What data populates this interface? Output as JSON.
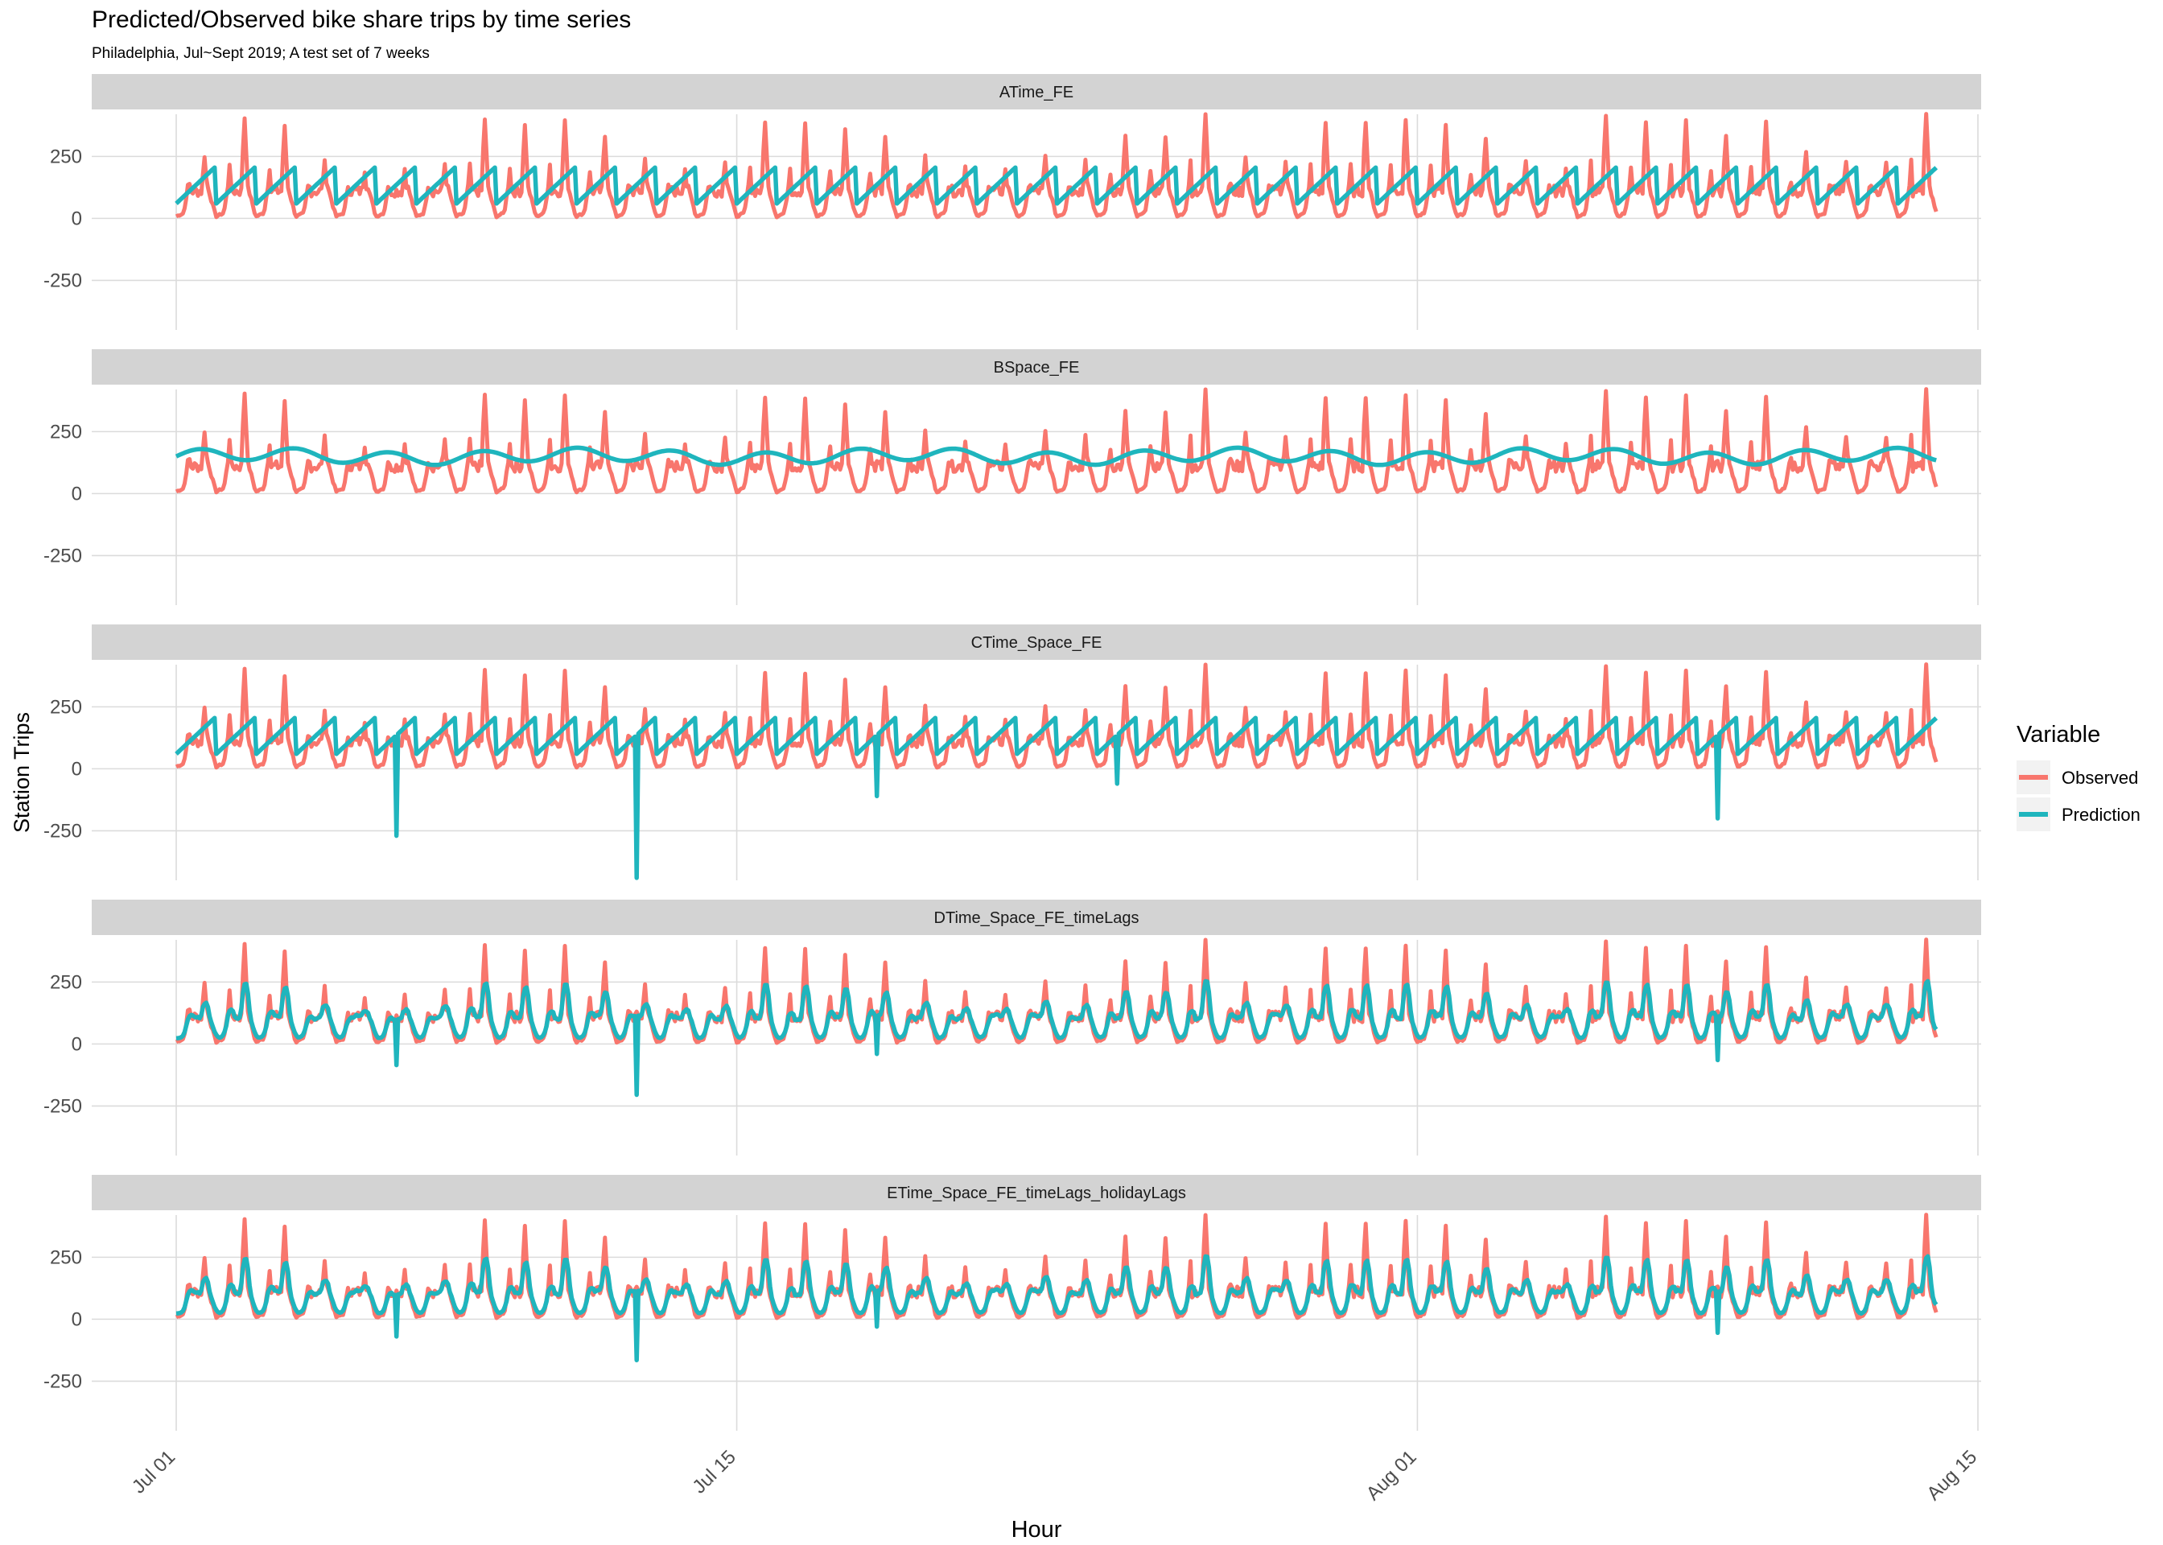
{
  "chart_data": {
    "type": "line",
    "title": "Predicted/Observed bike share trips by time series",
    "subtitle": "Philadelphia, Jul~Sept 2019; A test set of 7 weeks",
    "xlabel": "Hour",
    "ylabel": "Station Trips",
    "x_axis": {
      "type": "date",
      "range": [
        "2019-07-01",
        "2019-08-15"
      ],
      "data_range": [
        "2019-07-01",
        "2019-08-13"
      ],
      "tick_labels": [
        "Jul 01",
        "Jul 15",
        "Aug 01",
        "Aug 15"
      ],
      "tick_dates": [
        "2019-07-01",
        "2019-07-15",
        "2019-08-01",
        "2019-08-15"
      ]
    },
    "y_axis": {
      "range": [
        -450,
        420
      ],
      "ticks": [
        250,
        0,
        -250
      ],
      "tick_labels": [
        "250",
        "0",
        "-250"
      ]
    },
    "grid": true,
    "facets": [
      {
        "label": "ATime_FE",
        "prediction_style": "daily_ramp",
        "pred_min": 60,
        "pred_max": 205,
        "spikes": []
      },
      {
        "label": "BSpace_FE",
        "prediction_style": "smooth",
        "pred_level": 150,
        "pred_amplitude": 25,
        "spikes": []
      },
      {
        "label": "CTime_Space_FE",
        "prediction_style": "daily_ramp",
        "pred_min": 60,
        "pred_max": 205,
        "spikes": [
          {
            "date": "2019-07-06",
            "value": -270
          },
          {
            "date": "2019-07-12",
            "value": -440
          },
          {
            "date": "2019-07-18",
            "value": -110
          },
          {
            "date": "2019-07-24",
            "value": -60
          },
          {
            "date": "2019-08-08",
            "value": -200
          }
        ]
      },
      {
        "label": "DTime_Space_FE_timeLags",
        "prediction_style": "tracking",
        "pred_scale": 0.85,
        "spikes": [
          {
            "date": "2019-07-06",
            "value": -85
          },
          {
            "date": "2019-07-12",
            "value": -205
          },
          {
            "date": "2019-07-18",
            "value": -40
          },
          {
            "date": "2019-08-08",
            "value": -65
          }
        ]
      },
      {
        "label": "ETime_Space_FE_timeLags_holidayLags",
        "prediction_style": "tracking",
        "pred_scale": 0.85,
        "spikes": [
          {
            "date": "2019-07-06",
            "value": -70
          },
          {
            "date": "2019-07-12",
            "value": -165
          },
          {
            "date": "2019-07-18",
            "value": -30
          },
          {
            "date": "2019-08-08",
            "value": -55
          }
        ]
      }
    ],
    "observed_daily_peaks": [
      {
        "date": "2019-07-01",
        "peak": 250
      },
      {
        "date": "2019-07-02",
        "peak": 405
      },
      {
        "date": "2019-07-03",
        "peak": 370
      },
      {
        "date": "2019-07-04",
        "peak": 230
      },
      {
        "date": "2019-07-05",
        "peak": 190
      },
      {
        "date": "2019-07-06",
        "peak": 200
      },
      {
        "date": "2019-07-07",
        "peak": 220
      },
      {
        "date": "2019-07-08",
        "peak": 400
      },
      {
        "date": "2019-07-09",
        "peak": 375
      },
      {
        "date": "2019-07-10",
        "peak": 395
      },
      {
        "date": "2019-07-11",
        "peak": 330
      },
      {
        "date": "2019-07-12",
        "peak": 240
      },
      {
        "date": "2019-07-13",
        "peak": 200
      },
      {
        "date": "2019-07-14",
        "peak": 230
      },
      {
        "date": "2019-07-15",
        "peak": 390
      },
      {
        "date": "2019-07-16",
        "peak": 380
      },
      {
        "date": "2019-07-17",
        "peak": 360
      },
      {
        "date": "2019-07-18",
        "peak": 330
      },
      {
        "date": "2019-07-19",
        "peak": 250
      },
      {
        "date": "2019-07-20",
        "peak": 210
      },
      {
        "date": "2019-07-21",
        "peak": 200
      },
      {
        "date": "2019-07-22",
        "peak": 250
      },
      {
        "date": "2019-07-23",
        "peak": 240
      },
      {
        "date": "2019-07-24",
        "peak": 330
      },
      {
        "date": "2019-07-25",
        "peak": 330
      },
      {
        "date": "2019-07-26",
        "peak": 420
      },
      {
        "date": "2019-07-27",
        "peak": 250
      },
      {
        "date": "2019-07-28",
        "peak": 230
      },
      {
        "date": "2019-07-29",
        "peak": 385
      },
      {
        "date": "2019-07-30",
        "peak": 390
      },
      {
        "date": "2019-07-31",
        "peak": 400
      },
      {
        "date": "2019-08-01",
        "peak": 380
      },
      {
        "date": "2019-08-02",
        "peak": 320
      },
      {
        "date": "2019-08-03",
        "peak": 230
      },
      {
        "date": "2019-08-04",
        "peak": 200
      },
      {
        "date": "2019-08-05",
        "peak": 410
      },
      {
        "date": "2019-08-06",
        "peak": 385
      },
      {
        "date": "2019-08-07",
        "peak": 395
      },
      {
        "date": "2019-08-08",
        "peak": 330
      },
      {
        "date": "2019-08-09",
        "peak": 390
      },
      {
        "date": "2019-08-10",
        "peak": 270
      },
      {
        "date": "2019-08-11",
        "peak": 230
      },
      {
        "date": "2019-08-12",
        "peak": 230
      },
      {
        "date": "2019-08-13",
        "peak": 420
      }
    ],
    "legend": {
      "title": "Variable",
      "position": "right",
      "entries": [
        {
          "label": "Observed",
          "color": "#F8766D"
        },
        {
          "label": "Prediction",
          "color": "#1FB5BD"
        }
      ]
    },
    "colors": {
      "observed": "#F8766D",
      "prediction": "#1FB5BD",
      "strip_bg": "#D3D3D3",
      "grid": "#DBDBDB",
      "axis_text": "#4D4D4D"
    }
  }
}
